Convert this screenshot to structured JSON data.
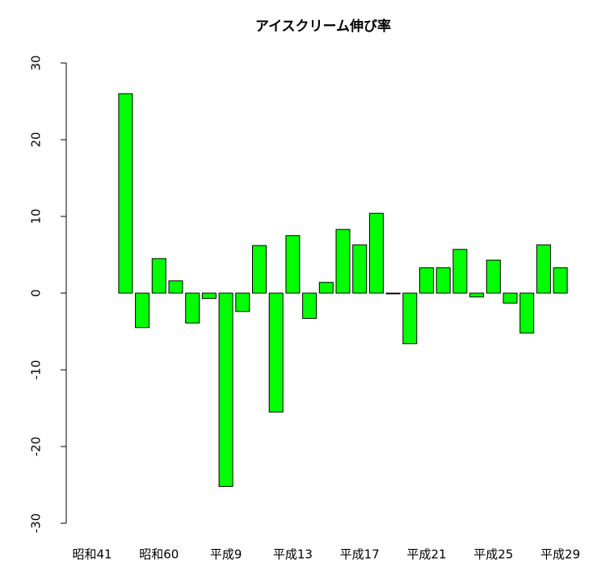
{
  "chart_data": {
    "type": "bar",
    "title": "アイスクリーム伸び率",
    "categories": [
      "昭和41",
      null,
      null,
      null,
      "昭和60",
      null,
      null,
      null,
      "平成9",
      null,
      null,
      null,
      "平成13",
      null,
      null,
      null,
      "平成17",
      null,
      null,
      null,
      "平成21",
      null,
      null,
      null,
      "平成25",
      null,
      null,
      null,
      "平成29"
    ],
    "values": [
      null,
      null,
      26,
      -4.5,
      4.5,
      1.6,
      -3.9,
      -0.7,
      -25.2,
      -2.4,
      6.2,
      -15.5,
      7.5,
      -3.3,
      1.4,
      8.3,
      6.3,
      10.4,
      -0.1,
      -6.6,
      3.3,
      3.3,
      5.7,
      -0.5,
      4.3,
      -1.3,
      -5.2,
      6.3,
      3.3
    ],
    "color": "#00ff00",
    "ylim": [
      -30,
      30
    ],
    "yticks": [
      -30,
      -20,
      -10,
      0,
      10,
      20,
      30
    ]
  }
}
